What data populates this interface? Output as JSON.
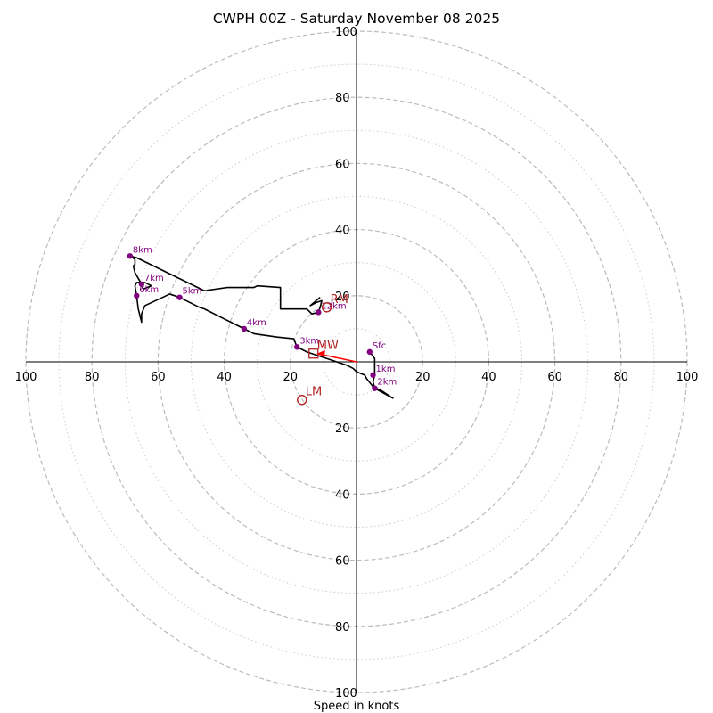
{
  "chart_data": {
    "type": "hodograph",
    "title": "CWPH 00Z - Saturday November 08 2025",
    "xlabel": "Speed in knots",
    "xlim": [
      -100,
      100
    ],
    "ylim": [
      -100,
      100
    ],
    "ring_major": [
      20,
      40,
      60,
      80,
      100
    ],
    "ring_minor": [
      10,
      30,
      50,
      70,
      90
    ],
    "x_tick_labels": [
      "100",
      "80",
      "60",
      "40",
      "20",
      "20",
      "40",
      "60",
      "80",
      "100"
    ],
    "y_tick_labels": [
      "100",
      "80",
      "60",
      "40",
      "20",
      "20",
      "40",
      "60",
      "80",
      "100"
    ],
    "hodograph_trace": [
      [
        4,
        3
      ],
      [
        5.5,
        1
      ],
      [
        5.5,
        -4
      ],
      [
        5,
        -6
      ],
      [
        5.5,
        -8
      ],
      [
        11,
        -11
      ],
      [
        8,
        -9
      ],
      [
        5,
        -7.5
      ],
      [
        3,
        -5
      ],
      [
        2.5,
        -4
      ],
      [
        0,
        -3
      ],
      [
        -1,
        -2
      ],
      [
        -3,
        -1
      ],
      [
        -6,
        0
      ],
      [
        -9,
        1
      ],
      [
        -12,
        2
      ],
      [
        -15,
        3
      ],
      [
        -18,
        4.5
      ],
      [
        -19,
        7
      ],
      [
        -24,
        7.5
      ],
      [
        -31,
        8.5
      ],
      [
        -34,
        10
      ],
      [
        -41,
        13.5
      ],
      [
        -46,
        16
      ],
      [
        -47.5,
        16.5
      ],
      [
        -53.5,
        19.5
      ],
      [
        -56.5,
        20.5
      ],
      [
        -64,
        17
      ],
      [
        -65,
        14.5
      ],
      [
        -65,
        12
      ],
      [
        -66,
        16
      ],
      [
        -66.5,
        20
      ],
      [
        -67,
        23
      ],
      [
        -66.5,
        24
      ],
      [
        -64,
        24
      ],
      [
        -62,
        23
      ],
      [
        -64.5,
        22
      ],
      [
        -65,
        23.5
      ],
      [
        -67,
        27
      ],
      [
        -67.5,
        29
      ],
      [
        -67,
        29.5
      ],
      [
        -67,
        31
      ],
      [
        -68.5,
        32
      ],
      [
        -66.5,
        31.5
      ],
      [
        -46,
        21.5
      ],
      [
        -39,
        22.5
      ],
      [
        -31,
        22.5
      ],
      [
        -30,
        23
      ],
      [
        -23,
        22.5
      ],
      [
        -23,
        16
      ],
      [
        -17,
        16
      ],
      [
        -15,
        16
      ],
      [
        -13.5,
        14.5
      ],
      [
        -11.5,
        15
      ],
      [
        -11,
        16.5
      ],
      [
        -10.5,
        18.5
      ],
      [
        -12,
        18
      ],
      [
        -14,
        17
      ],
      [
        -11,
        19.5
      ]
    ],
    "height_markers": [
      {
        "label": "Sfc",
        "u": 4,
        "v": 3
      },
      {
        "label": "1km",
        "u": 5,
        "v": -4
      },
      {
        "label": "2km",
        "u": 5.5,
        "v": -8
      },
      {
        "label": "3km",
        "u": -18,
        "v": 4.5
      },
      {
        "label": "4km",
        "u": -34,
        "v": 10
      },
      {
        "label": "5km",
        "u": -53.5,
        "v": 19.5
      },
      {
        "label": "6km",
        "u": -66.5,
        "v": 20
      },
      {
        "label": "7km",
        "u": -65,
        "v": 23.5
      },
      {
        "label": "8km",
        "u": -68.5,
        "v": 32
      },
      {
        "label": "12km",
        "u": -11.5,
        "v": 15
      }
    ],
    "motion_markers": [
      {
        "label": "RM",
        "u": -9,
        "v": 16.5,
        "shape": "circle"
      },
      {
        "label": "LM",
        "u": -16.5,
        "v": -11.5,
        "shape": "circle"
      },
      {
        "label": "MW",
        "u": -13,
        "v": 2.5,
        "shape": "square"
      }
    ],
    "mean_wind_vector": {
      "u": -13,
      "v": 2.5
    },
    "colors": {
      "trace": "#000000",
      "height_marker": "#800080",
      "motion": "#b22222",
      "vector": "#ff0000",
      "grid": "#bbbbbb",
      "axis": "#000000"
    }
  }
}
